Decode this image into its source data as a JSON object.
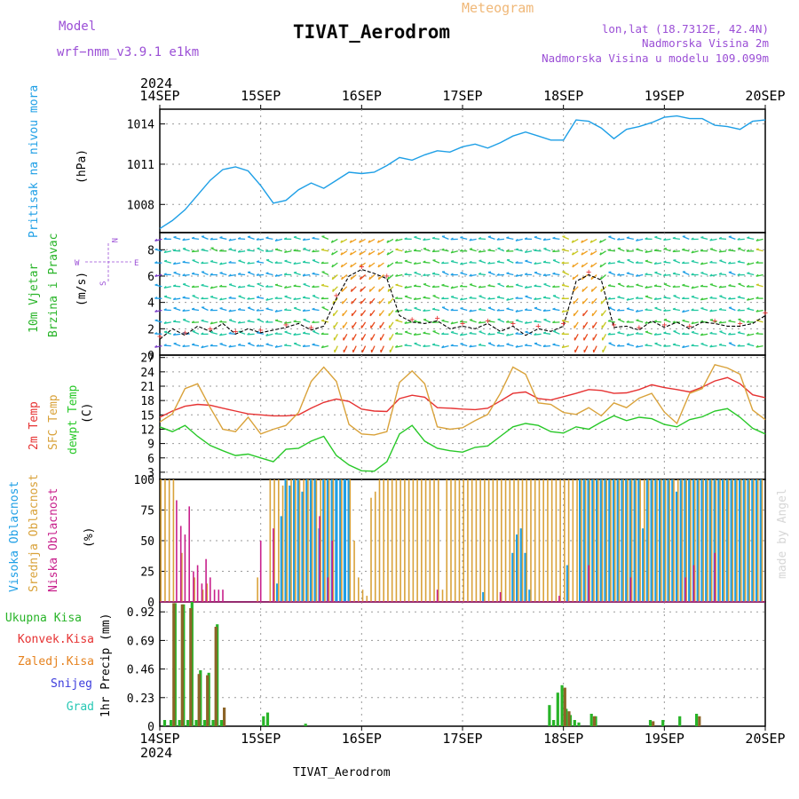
{
  "header": {
    "model_label": "Model",
    "model_name": "wrf−nmm_v3.9.1  e1km",
    "meteogram_label": "Meteogram",
    "station": "TIVAT_Aerodrom",
    "lonlat": "lon,lat (18.7312E, 42.4N)",
    "altitude": "Nadmorska Visina 2m",
    "model_altitude": "Nadmorska Visina u modelu 109.099m",
    "year_top": "2024",
    "year_bottom": "2024",
    "footer_station": "TIVAT_Aerodrom",
    "signature": "made by Angel"
  },
  "colors": {
    "pressure": "#1e9fe6",
    "temp2m": "#e63232",
    "sfc_temp": "#d9a23a",
    "dewpt": "#28c828",
    "high_cloud": "#1e9fe6",
    "mid_cloud": "#d9a23a",
    "low_cloud": "#c8208c",
    "total_precip": "#28b428",
    "conv_precip": "#e63232",
    "frozen_precip": "#e6821e",
    "snow": "#3c3cdc",
    "graupel": "#28c8b4",
    "purple_text": "#9b4fd6",
    "meteogram_text": "#f0b878"
  },
  "x_axis": {
    "ticks": [
      "14SEP",
      "15SEP",
      "16SEP",
      "17SEP",
      "18SEP",
      "19SEP",
      "20SEP"
    ]
  },
  "panels": {
    "pressure": {
      "label_main": "Pritisak na nivou mora",
      "unit": "(hPa)",
      "ticks": [
        "1008",
        "1011",
        "1014"
      ]
    },
    "wind": {
      "label_main": "10m Vjetar",
      "label_sub": "Brzina i Pravac",
      "unit": "(m/s)",
      "compass_n": "N",
      "compass_e": "E",
      "compass_w": "W",
      "compass_s": "S",
      "ticks": [
        "0",
        "2",
        "4",
        "6",
        "8"
      ]
    },
    "temperature": {
      "label_2m": "2m Temp",
      "label_sfc": "SFC Temp",
      "label_dew": "dewpt Temp",
      "unit": "(C)",
      "ticks": [
        "3",
        "6",
        "9",
        "12",
        "15",
        "18",
        "21",
        "24",
        "27"
      ]
    },
    "cloud": {
      "label_high": "Visoka Oblacnost",
      "label_mid": "Srednja Oblacnost",
      "label_low": "Niska Oblacnost",
      "unit": "(%)",
      "ticks": [
        "0",
        "25",
        "50",
        "75",
        "100"
      ]
    },
    "precip": {
      "label_total": "Ukupna Kisa",
      "label_conv": "Konvek.Kisa",
      "label_frozen": "Zaledj.Kisa",
      "label_snow": "Snijeg",
      "label_graupel": "Grad",
      "unit": "1hr Precip (mm)",
      "ticks": [
        "0",
        "0.23",
        "0.46",
        "0.69",
        "0.92"
      ]
    }
  },
  "chart_data": [
    {
      "type": "line",
      "name": "pressure",
      "x_unit": "hours since 14SEP 00",
      "ylim": [
        1005.9,
        1015.1
      ],
      "x": [
        0,
        3,
        6,
        9,
        12,
        15,
        18,
        21,
        24,
        27,
        30,
        33,
        36,
        39,
        42,
        45,
        48,
        51,
        54,
        57,
        60,
        63,
        66,
        69,
        72,
        75,
        78,
        81,
        84,
        87,
        90,
        93,
        96,
        99,
        102,
        105,
        108,
        111,
        114,
        117,
        120,
        123,
        126,
        129,
        132,
        135,
        138,
        141,
        144
      ],
      "y": [
        1006.2,
        1006.8,
        1007.6,
        1008.7,
        1009.8,
        1010.6,
        1010.8,
        1010.5,
        1009.4,
        1008.1,
        1008.3,
        1009.1,
        1009.6,
        1009.2,
        1009.8,
        1010.4,
        1010.3,
        1010.4,
        1010.9,
        1011.5,
        1011.3,
        1011.7,
        1012.0,
        1011.9,
        1012.3,
        1012.5,
        1012.2,
        1012.6,
        1013.1,
        1013.4,
        1013.1,
        1012.8,
        1012.8,
        1014.3,
        1014.2,
        1013.7,
        1012.9,
        1013.6,
        1013.8,
        1014.1,
        1014.5,
        1014.6,
        1014.4,
        1014.4,
        1013.9,
        1013.8,
        1013.6,
        1014.2,
        1014.3
      ]
    },
    {
      "type": "line",
      "name": "wind_speed",
      "x_unit": "hours since 14SEP 00",
      "ylim": [
        0,
        9.3
      ],
      "x": [
        0,
        3,
        6,
        9,
        12,
        15,
        18,
        21,
        24,
        27,
        30,
        33,
        36,
        39,
        42,
        45,
        48,
        51,
        54,
        57,
        60,
        63,
        66,
        69,
        72,
        75,
        78,
        81,
        84,
        87,
        90,
        93,
        96,
        99,
        102,
        105,
        108,
        111,
        114,
        117,
        120,
        123,
        126,
        129,
        132,
        135,
        138,
        141,
        144
      ],
      "y": [
        1.2,
        2.0,
        1.5,
        2.2,
        1.8,
        2.4,
        1.6,
        2.0,
        1.7,
        1.9,
        2.1,
        2.4,
        1.9,
        2.2,
        4.3,
        6.0,
        6.5,
        6.2,
        5.8,
        3.0,
        2.5,
        2.4,
        2.6,
        2.0,
        2.2,
        2.0,
        2.4,
        1.8,
        2.2,
        1.5,
        2.0,
        1.8,
        2.2,
        5.6,
        6.1,
        5.7,
        2.1,
        2.2,
        1.9,
        2.6,
        2.1,
        2.5,
        2.0,
        2.5,
        2.4,
        2.2,
        2.2,
        2.4,
        3.0
      ]
    },
    {
      "type": "line",
      "name": "temperature",
      "x_unit": "hours since 14SEP 00",
      "ylim": [
        1.5,
        27.5
      ],
      "x": [
        0,
        3,
        6,
        9,
        12,
        15,
        18,
        21,
        24,
        27,
        30,
        33,
        36,
        39,
        42,
        45,
        48,
        51,
        54,
        57,
        60,
        63,
        66,
        69,
        72,
        75,
        78,
        81,
        84,
        87,
        90,
        93,
        96,
        99,
        102,
        105,
        108,
        111,
        114,
        117,
        120,
        123,
        126,
        129,
        132,
        135,
        138,
        141,
        144
      ],
      "series": [
        {
          "name": "2m Temp",
          "values": [
            14.5,
            15.8,
            16.8,
            17.2,
            17.0,
            16.4,
            15.8,
            15.2,
            15.0,
            14.8,
            14.8,
            15.0,
            16.4,
            17.6,
            18.3,
            17.8,
            16.2,
            15.8,
            15.7,
            18.4,
            19.1,
            18.7,
            16.5,
            16.4,
            16.2,
            16.1,
            16.4,
            17.9,
            19.5,
            19.8,
            18.4,
            18.1,
            18.8,
            19.5,
            20.3,
            20.1,
            19.5,
            19.6,
            20.3,
            21.3,
            20.7,
            20.3,
            19.8,
            20.8,
            22.1,
            22.8,
            21.5,
            19.2,
            18.6
          ]
        },
        {
          "name": "SFC Temp",
          "values": [
            13.5,
            15.2,
            20.5,
            21.5,
            16.5,
            12.0,
            11.5,
            14.5,
            11.0,
            12.0,
            12.8,
            15.5,
            22.0,
            25.0,
            22.0,
            13.0,
            11.0,
            10.8,
            11.5,
            21.8,
            24.2,
            21.5,
            12.5,
            12.0,
            12.3,
            13.8,
            15.1,
            19.5,
            25.0,
            23.5,
            17.5,
            17.2,
            15.5,
            15.1,
            16.5,
            14.8,
            17.5,
            16.5,
            18.5,
            19.5,
            15.6,
            13.2,
            19.5,
            20.5,
            25.5,
            24.8,
            23.5,
            16.0,
            14.0
          ]
        },
        {
          "name": "dewpt Temp",
          "values": [
            12.5,
            11.5,
            12.8,
            10.5,
            8.6,
            7.5,
            6.5,
            6.8,
            6.0,
            5.2,
            7.8,
            8.0,
            9.5,
            10.5,
            6.5,
            4.5,
            3.3,
            3.2,
            5.2,
            11.0,
            12.8,
            9.5,
            8.0,
            7.5,
            7.2,
            8.2,
            8.5,
            10.5,
            12.5,
            13.2,
            12.8,
            11.5,
            11.2,
            12.5,
            12.0,
            13.5,
            14.8,
            13.8,
            14.5,
            14.2,
            13.0,
            12.5,
            14.0,
            14.6,
            15.8,
            16.3,
            14.5,
            12.2,
            11.0
          ]
        }
      ]
    },
    {
      "type": "bar",
      "name": "cloud_cover",
      "x_unit": "hours since 14SEP 00",
      "ylim": [
        0,
        100
      ],
      "series": [
        {
          "name": "Visoka Oblacnost",
          "x": [
            28,
            29,
            30,
            31,
            32,
            33,
            34,
            35,
            36,
            37,
            38,
            39,
            40,
            41,
            42,
            43,
            44,
            45,
            77,
            84,
            85,
            86,
            87,
            88,
            97,
            100,
            101,
            102,
            103,
            104,
            105,
            106,
            107,
            108,
            109,
            110,
            111,
            112,
            113,
            114,
            115,
            116,
            117,
            118,
            119,
            120,
            121,
            122,
            123,
            124,
            125,
            126,
            127,
            128,
            129,
            130,
            131,
            132,
            133,
            134,
            135,
            136,
            137,
            138,
            139,
            140,
            141,
            142,
            143
          ],
          "values": [
            15,
            70,
            100,
            95,
            100,
            100,
            90,
            100,
            100,
            100,
            60,
            100,
            100,
            100,
            100,
            100,
            100,
            100,
            8,
            40,
            55,
            60,
            40,
            10,
            30,
            100,
            100,
            100,
            100,
            100,
            100,
            100,
            100,
            100,
            100,
            100,
            100,
            100,
            100,
            100,
            60,
            100,
            100,
            100,
            100,
            100,
            100,
            100,
            90,
            100,
            100,
            100,
            100,
            100,
            100,
            100,
            100,
            100,
            100,
            100,
            100,
            100,
            100,
            100,
            100,
            100,
            100,
            100,
            100
          ]
        },
        {
          "name": "Srednja Oblacnost",
          "x": [
            0,
            1,
            2,
            3,
            5,
            8,
            10,
            11,
            23,
            26,
            27,
            28,
            29,
            30,
            31,
            32,
            33,
            34,
            35,
            36,
            37,
            38,
            39,
            40,
            41,
            43,
            45,
            46,
            47,
            48,
            49,
            50,
            51,
            52,
            53,
            54,
            55,
            56,
            57,
            58,
            59,
            60,
            61,
            62,
            63,
            64,
            65,
            66,
            67,
            68,
            69,
            70,
            71,
            72,
            73,
            74,
            75,
            76,
            77,
            78,
            79,
            80,
            81,
            82,
            83,
            84,
            85,
            86,
            87,
            88,
            89,
            90,
            91,
            92,
            93,
            94,
            95,
            96,
            97,
            98,
            99,
            100,
            101,
            102,
            103,
            104,
            105,
            106,
            107,
            108,
            109,
            110,
            111,
            112,
            113,
            114,
            115,
            116,
            117,
            118,
            119,
            120,
            121,
            122,
            123,
            124,
            125,
            126,
            127,
            128,
            129,
            130,
            131,
            132,
            133,
            134,
            135,
            136,
            137,
            138,
            139,
            140,
            141,
            142,
            143
          ],
          "values": [
            100,
            100,
            100,
            100,
            40,
            20,
            10,
            15,
            20,
            100,
            100,
            100,
            95,
            100,
            100,
            100,
            100,
            100,
            100,
            100,
            100,
            100,
            100,
            100,
            100,
            100,
            100,
            50,
            20,
            10,
            5,
            85,
            90,
            100,
            100,
            100,
            100,
            100,
            100,
            100,
            100,
            100,
            100,
            100,
            100,
            100,
            100,
            100,
            10,
            100,
            100,
            100,
            100,
            100,
            100,
            100,
            100,
            100,
            100,
            100,
            100,
            100,
            100,
            100,
            100,
            100,
            100,
            100,
            100,
            100,
            100,
            100,
            100,
            100,
            100,
            100,
            100,
            100,
            100,
            100,
            100,
            100,
            100,
            100,
            100,
            100,
            100,
            100,
            100,
            100,
            100,
            100,
            100,
            100,
            100,
            100,
            100,
            100,
            100,
            100,
            100,
            100,
            100,
            100,
            100,
            100,
            100,
            100,
            100,
            100,
            100,
            100,
            100,
            100,
            100,
            100,
            100,
            100,
            100,
            100,
            100,
            100,
            100,
            100,
            100
          ]
        },
        {
          "name": "Niska Oblacnost",
          "x": [
            4,
            5,
            6,
            7,
            8,
            9,
            10,
            11,
            12,
            13,
            14,
            15,
            24,
            27,
            38,
            40,
            41,
            66,
            81,
            95,
            102,
            112,
            125,
            127,
            132
          ],
          "values": [
            83,
            62,
            55,
            78,
            25,
            30,
            15,
            35,
            20,
            10,
            10,
            10,
            50,
            60,
            70,
            20,
            50,
            10,
            8,
            5,
            30,
            20,
            20,
            30,
            40
          ]
        }
      ]
    },
    {
      "type": "bar",
      "name": "precip_1hr",
      "x_unit": "hours since 14SEP 00",
      "ylim": [
        0,
        1.0
      ],
      "series": [
        {
          "name": "Ukupna Kisa",
          "x": [
            1.5,
            3,
            4,
            5,
            6,
            7,
            8,
            9,
            10,
            11,
            12,
            13,
            14,
            15,
            25,
            26,
            35,
            93,
            94,
            95,
            96,
            97,
            98,
            99,
            100,
            103,
            104,
            117,
            120,
            124,
            128
          ],
          "values": [
            0.05,
            0.05,
            0.99,
            0.05,
            0.98,
            0.05,
            1.0,
            0.05,
            0.45,
            0.05,
            0.43,
            0.05,
            0.82,
            0.05,
            0.08,
            0.11,
            0.02,
            0.17,
            0.05,
            0.27,
            0.33,
            0.14,
            0.09,
            0.05,
            0.03,
            0.1,
            0.08,
            0.05,
            0.05,
            0.08,
            0.1
          ]
        },
        {
          "name": "Konvek.Kisa",
          "x": [
            3,
            5,
            7,
            9,
            11,
            13,
            15,
            96,
            97,
            103,
            117,
            128
          ],
          "values": [
            0.99,
            0.98,
            0.95,
            0.42,
            0.41,
            0.8,
            0.15,
            0.31,
            0.12,
            0.08,
            0.04,
            0.08
          ]
        }
      ]
    }
  ]
}
